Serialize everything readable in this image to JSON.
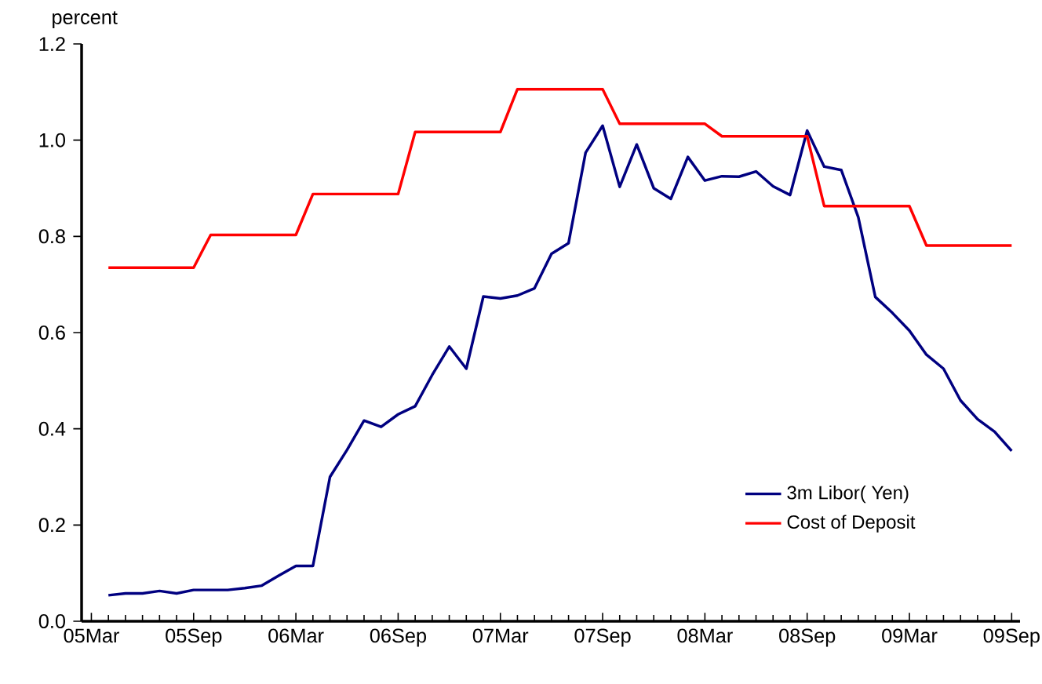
{
  "chart_data": {
    "type": "line",
    "ylabel": "percent",
    "x": [
      "2005-04",
      "2005-05",
      "2005-06",
      "2005-07",
      "2005-08",
      "2005-09",
      "2005-10",
      "2005-11",
      "2005-12",
      "2006-01",
      "2006-02",
      "2006-03",
      "2006-04",
      "2006-05",
      "2006-06",
      "2006-07",
      "2006-08",
      "2006-09",
      "2006-10",
      "2006-11",
      "2006-12",
      "2007-01",
      "2007-02",
      "2007-03",
      "2007-04",
      "2007-05",
      "2007-06",
      "2007-07",
      "2007-08",
      "2007-09",
      "2007-10",
      "2007-11",
      "2007-12",
      "2008-01",
      "2008-02",
      "2008-03",
      "2008-04",
      "2008-05",
      "2008-06",
      "2008-07",
      "2008-08",
      "2008-09",
      "2008-10",
      "2008-11",
      "2008-12",
      "2009-01",
      "2009-02",
      "2009-03",
      "2009-04",
      "2009-05",
      "2009-06",
      "2009-07",
      "2009-08",
      "2009-09"
    ],
    "series": [
      {
        "name": "3m Libor( Yen)",
        "color": "#000080",
        "values": [
          0.054,
          0.058,
          0.058,
          0.063,
          0.058,
          0.065,
          0.065,
          0.065,
          0.069,
          0.074,
          0.095,
          0.115,
          0.115,
          0.3,
          0.356,
          0.417,
          0.404,
          0.43,
          0.447,
          0.512,
          0.571,
          0.525,
          0.675,
          0.671,
          0.677,
          0.692,
          0.764,
          0.786,
          0.974,
          1.03,
          0.903,
          0.991,
          0.9,
          0.878,
          0.965,
          0.916,
          0.925,
          0.924,
          0.935,
          0.904,
          0.886,
          1.02,
          0.945,
          0.938,
          0.84,
          0.674,
          0.641,
          0.604,
          0.554,
          0.525,
          0.459,
          0.42,
          0.394,
          0.354
        ]
      },
      {
        "name": "Cost of Deposit",
        "color": "#ff0000",
        "values": [
          0.735,
          0.735,
          0.735,
          0.735,
          0.735,
          0.735,
          0.803,
          0.803,
          0.803,
          0.803,
          0.803,
          0.803,
          0.888,
          0.888,
          0.888,
          0.888,
          0.888,
          0.888,
          1.017,
          1.017,
          1.017,
          1.017,
          1.017,
          1.017,
          1.106,
          1.106,
          1.106,
          1.106,
          1.106,
          1.106,
          1.034,
          1.034,
          1.034,
          1.034,
          1.034,
          1.034,
          1.008,
          1.008,
          1.008,
          1.008,
          1.008,
          1.008,
          0.863,
          0.863,
          0.863,
          0.863,
          0.863,
          0.863,
          0.781,
          0.781,
          0.781,
          0.781,
          0.781,
          0.781
        ]
      }
    ],
    "xlim": [
      "2005-02-14",
      "2009-09-16"
    ],
    "xticks": [
      {
        "value": "2005-03",
        "label": "05Mar"
      },
      {
        "value": "2005-09",
        "label": "05Sep"
      },
      {
        "value": "2006-03",
        "label": "06Mar"
      },
      {
        "value": "2006-09",
        "label": "06Sep"
      },
      {
        "value": "2007-03",
        "label": "07Mar"
      },
      {
        "value": "2007-09",
        "label": "07Sep"
      },
      {
        "value": "2008-03",
        "label": "08Mar"
      },
      {
        "value": "2008-09",
        "label": "08Sep"
      },
      {
        "value": "2009-03",
        "label": "09Mar"
      },
      {
        "value": "2009-09",
        "label": "09Sep"
      }
    ],
    "ylim": [
      0,
      1.2
    ],
    "yticks": [
      {
        "value": 0,
        "label": "0.0"
      },
      {
        "value": 0.2,
        "label": "0.2"
      },
      {
        "value": 0.4,
        "label": "0.4"
      },
      {
        "value": 0.6,
        "label": "0.6"
      },
      {
        "value": 0.8,
        "label": "0.8"
      },
      {
        "value": 1.0,
        "label": "1.0"
      },
      {
        "value": 1.2,
        "label": "1.2"
      }
    ],
    "grid": false,
    "legend": "bottom right",
    "marker": "none",
    "line_style": "solid"
  }
}
